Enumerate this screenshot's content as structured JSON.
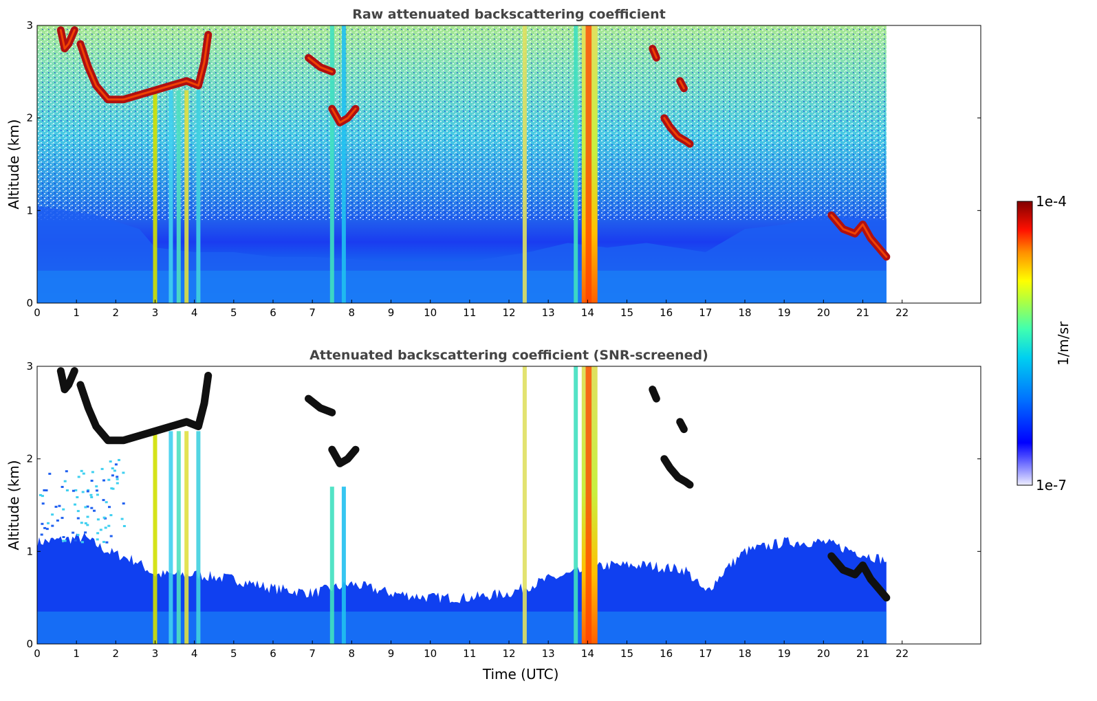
{
  "chart_data": [
    {
      "type": "heatmap",
      "title": "Raw attenuated backscattering coefficient",
      "xlabel": "",
      "ylabel": "Altitude (km)",
      "xlim": [
        0,
        24
      ],
      "ylim": [
        0,
        3
      ],
      "xticks": [
        "0",
        "1",
        "2",
        "3",
        "4",
        "5",
        "6",
        "7",
        "8",
        "9",
        "10",
        "11",
        "12",
        "13",
        "14",
        "15",
        "16",
        "17",
        "18",
        "19",
        "20",
        "21",
        "22"
      ],
      "yticks": [
        "0",
        "1",
        "2",
        "3"
      ],
      "data_end_time": 21.6,
      "screened": false,
      "features": [
        {
          "kind": "aerosol_layer",
          "time": [
            0,
            21.6
          ],
          "top_altitude_km": [
            1.05,
            0.5,
            0.55,
            0.7,
            0.6,
            0.6
          ]
        },
        {
          "kind": "cloud",
          "time": [
            1.2,
            4.3
          ],
          "altitude_km": [
            2.15,
            2.4
          ]
        },
        {
          "kind": "cloud",
          "time": [
            0.6,
            1.0
          ],
          "altitude_km": [
            2.7,
            3.0
          ]
        },
        {
          "kind": "cloud",
          "time": [
            7.0,
            7.5
          ],
          "altitude_km": [
            2.4,
            2.6
          ]
        },
        {
          "kind": "cloud",
          "time": [
            7.5,
            8.2
          ],
          "altitude_km": [
            1.9,
            2.1
          ]
        },
        {
          "kind": "cloud",
          "time": [
            15.6,
            16.6
          ],
          "altitude_km": [
            1.7,
            2.9
          ]
        },
        {
          "kind": "cloud",
          "time": [
            20.2,
            21.6
          ],
          "altitude_km": [
            0.45,
            1.2
          ]
        },
        {
          "kind": "precipitation",
          "times": [
            3.0,
            3.4,
            3.6,
            3.8,
            4.1,
            7.5,
            7.8,
            12.4,
            13.7,
            14.0
          ]
        }
      ]
    },
    {
      "type": "heatmap",
      "title": "Attenuated backscattering coefficient (SNR-screened)",
      "xlabel": "Time (UTC)",
      "ylabel": "Altitude (km)",
      "xlim": [
        0,
        24
      ],
      "ylim": [
        0,
        3
      ],
      "xticks": [
        "0",
        "1",
        "2",
        "3",
        "4",
        "5",
        "6",
        "7",
        "8",
        "9",
        "10",
        "11",
        "12",
        "13",
        "14",
        "15",
        "16",
        "17",
        "18",
        "19",
        "20",
        "21",
        "22"
      ],
      "yticks": [
        "0",
        "1",
        "2",
        "3"
      ],
      "data_end_time": 21.6,
      "screened": true
    }
  ],
  "colorbar": {
    "label": "1/m/sr",
    "max_label": "1e-4",
    "min_label": "1e-7",
    "scale": "log",
    "range": [
      1e-07,
      0.0001
    ],
    "colors": [
      "#e8e8ff",
      "#b4b4ff",
      "#8080ff",
      "#4040ff",
      "#0000ff",
      "#0040ff",
      "#0080ff",
      "#00c0ff",
      "#00e0e0",
      "#40ffc0",
      "#80ff80",
      "#c0ff40",
      "#ffff00",
      "#ffc000",
      "#ff8000",
      "#ff4000",
      "#ff0000",
      "#c00000",
      "#800000"
    ]
  }
}
